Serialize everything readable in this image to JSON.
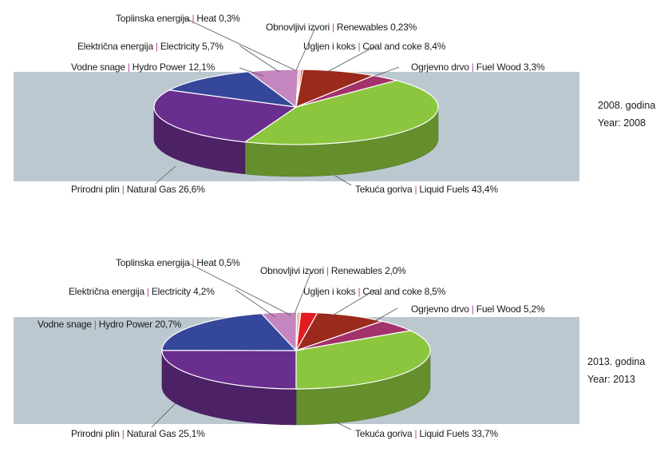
{
  "chart_data": [
    {
      "type": "pie",
      "year_label_hr": "2008. godina",
      "year_label_en": "Year: 2008",
      "slices": [
        {
          "name_hr": "Obnovljivi izvori",
          "name_en": "Renewables",
          "pct_text": "0,23%",
          "value": 0.23,
          "color": "#e31b23"
        },
        {
          "name_hr": "Ugljen i koks",
          "name_en": "Coal and coke",
          "pct_text": "8,4%",
          "value": 8.4,
          "color": "#9b2a1c"
        },
        {
          "name_hr": "Ogrjevno drvo",
          "name_en": "Fuel Wood",
          "pct_text": "3,3%",
          "value": 3.3,
          "color": "#a3316a"
        },
        {
          "name_hr": "Tekuća goriva",
          "name_en": "Liquid Fuels",
          "pct_text": "43,4%",
          "value": 43.4,
          "color": "#8cc63f"
        },
        {
          "name_hr": "Prirodni plin",
          "name_en": "Natural Gas",
          "pct_text": "26,6%",
          "value": 26.6,
          "color": "#6a2e8e"
        },
        {
          "name_hr": "Vodne snage",
          "name_en": "Hydro Power",
          "pct_text": "12,1%",
          "value": 12.1,
          "color": "#34479a"
        },
        {
          "name_hr": "Električna energija",
          "name_en": "Electricity",
          "pct_text": "5,7%",
          "value": 5.7,
          "color": "#c585be"
        },
        {
          "name_hr": "Toplinska energija",
          "name_en": "Heat",
          "pct_text": "0,3%",
          "value": 0.3,
          "color": "#f2c1a0"
        }
      ]
    },
    {
      "type": "pie",
      "year_label_hr": "2013. godina",
      "year_label_en": "Year: 2013",
      "slices": [
        {
          "name_hr": "Obnovljivi izvori",
          "name_en": "Renewables",
          "pct_text": "2,0%",
          "value": 2.0,
          "color": "#e31b23"
        },
        {
          "name_hr": "Ugljen i koks",
          "name_en": "Coal and coke",
          "pct_text": "8,5%",
          "value": 8.5,
          "color": "#9b2a1c"
        },
        {
          "name_hr": "Ogrjevno drvo",
          "name_en": "Fuel Wood",
          "pct_text": "5,2%",
          "value": 5.2,
          "color": "#a3316a"
        },
        {
          "name_hr": "Tekuća goriva",
          "name_en": "Liquid Fuels",
          "pct_text": "33,7%",
          "value": 33.7,
          "color": "#8cc63f"
        },
        {
          "name_hr": "Prirodni plin",
          "name_en": "Natural Gas",
          "pct_text": "25,1%",
          "value": 25.1,
          "color": "#6a2e8e"
        },
        {
          "name_hr": "Vodne snage",
          "name_en": "Hydro Power",
          "pct_text": "20,7%",
          "value": 20.7,
          "color": "#34479a"
        },
        {
          "name_hr": "Električna energija",
          "name_en": "Electricity",
          "pct_text": "4,2%",
          "value": 4.2,
          "color": "#c585be"
        },
        {
          "name_hr": "Toplinska energija",
          "name_en": "Heat",
          "pct_text": "0,5%",
          "value": 0.5,
          "color": "#f2c1a0"
        }
      ]
    }
  ]
}
